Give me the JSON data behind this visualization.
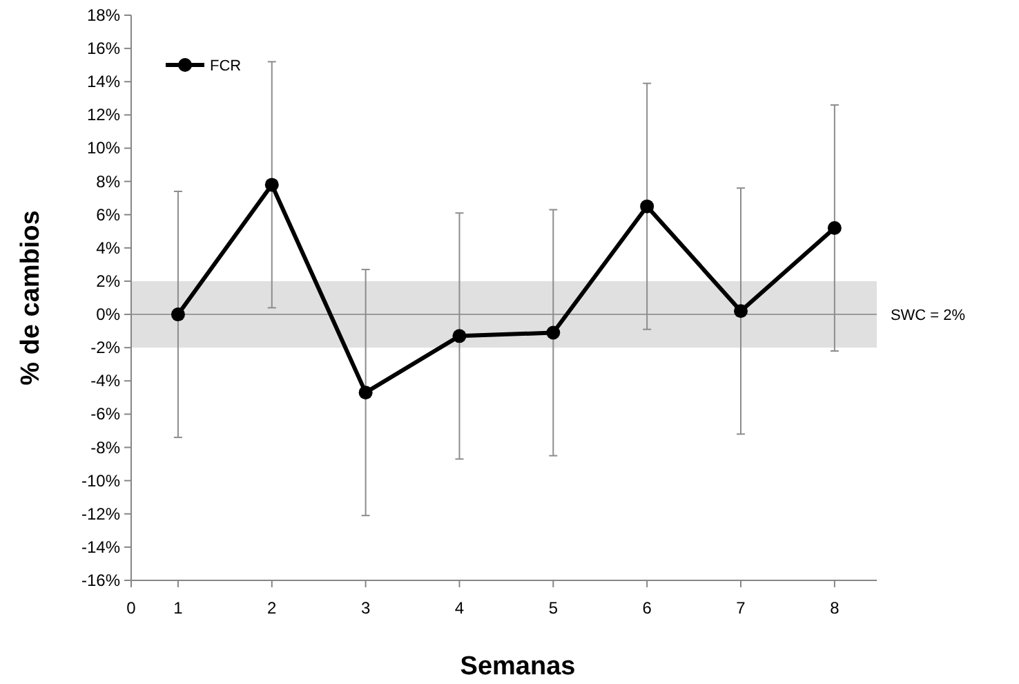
{
  "chart_data": {
    "type": "line",
    "xlabel": "Semanas",
    "ylabel": "% de cambios",
    "x": [
      1,
      2,
      3,
      4,
      5,
      6,
      7,
      8
    ],
    "series": [
      {
        "name": "FCR",
        "color": "#000000",
        "values": [
          0,
          7.8,
          -4.7,
          -1.3,
          -1.1,
          6.5,
          0.2,
          5.2
        ],
        "errors": [
          7.4,
          7.4,
          7.4,
          7.4,
          7.4,
          7.4,
          7.4,
          7.4
        ]
      }
    ],
    "xlim": [
      0.5,
      8.45
    ],
    "xticks": [
      {
        "value": 0.5,
        "label": "0"
      },
      1,
      2,
      3,
      4,
      5,
      6,
      7,
      8
    ],
    "ylim": [
      -16,
      18
    ],
    "yticks": [
      {
        "value": -16,
        "label": "-16%"
      },
      {
        "value": -14,
        "label": "-14%"
      },
      {
        "value": -12,
        "label": "-12%"
      },
      {
        "value": -10,
        "label": "-10%"
      },
      {
        "value": -8,
        "label": "-8%"
      },
      {
        "value": -6,
        "label": "-6%"
      },
      {
        "value": -4,
        "label": "-4%"
      },
      {
        "value": -2,
        "label": "-2%"
      },
      {
        "value": 0,
        "label": "0%"
      },
      {
        "value": 2,
        "label": "2%"
      },
      {
        "value": 4,
        "label": "4%"
      },
      {
        "value": 6,
        "label": "6%"
      },
      {
        "value": 8,
        "label": "8%"
      },
      {
        "value": 10,
        "label": "10%"
      },
      {
        "value": 12,
        "label": "12%"
      },
      {
        "value": 14,
        "label": "14%"
      },
      {
        "value": 16,
        "label": "16%"
      },
      {
        "value": 18,
        "label": "18%"
      }
    ],
    "bands": [
      {
        "axis": "y",
        "from": -2,
        "to": 2,
        "label": "SWC = 2%",
        "color": "#e0e0e0"
      }
    ],
    "ref_lines": [
      {
        "axis": "y",
        "value": 0,
        "color": "#9a9a9a"
      }
    ],
    "marker": "circle",
    "line_style": "solid",
    "legend": "top left",
    "grid": false
  }
}
